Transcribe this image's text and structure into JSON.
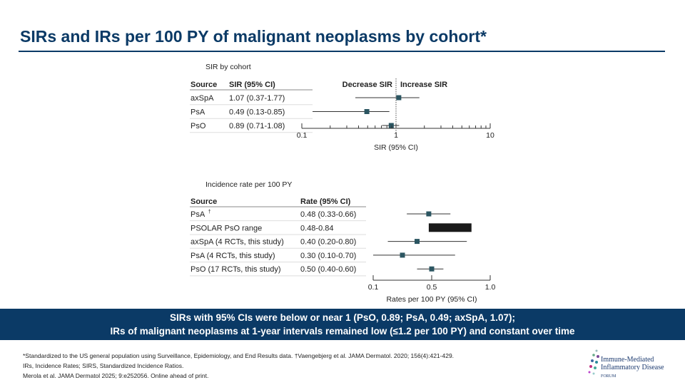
{
  "title": "SIRs and IRs per 100 PY of malignant neoplasms by cohort*",
  "chart_data": [
    {
      "type": "forest",
      "title": "SIR by cohort",
      "xlabel": "SIR (95% CI)",
      "scale": "log",
      "xlim": [
        0.1,
        10
      ],
      "ticks": [
        "0.1",
        "1",
        "10"
      ],
      "headers": [
        "Source",
        "SIR (95% CI)"
      ],
      "reference_line": 1,
      "left_label": "Decrease SIR",
      "right_label": "Increase SIR",
      "rows": [
        {
          "source": "axSpA",
          "text": "1.07 (0.37-1.77)",
          "est": 1.07,
          "lo": 0.37,
          "hi": 1.77
        },
        {
          "source": "PsA",
          "text": "0.49 (0.13-0.85)",
          "est": 0.49,
          "lo": 0.13,
          "hi": 0.85
        },
        {
          "source": "PsO",
          "text": "0.89 (0.71-1.08)",
          "est": 0.89,
          "lo": 0.71,
          "hi": 1.08
        }
      ]
    },
    {
      "type": "forest",
      "title": "Incidence rate per 100 PY",
      "xlabel": "Rates per 100 PY (95% CI)",
      "xlim": [
        0.1,
        1.0
      ],
      "ticks": [
        "0.1",
        "0.5",
        "1.0"
      ],
      "headers": [
        "Source",
        "Rate (95% CI)"
      ],
      "rows": [
        {
          "source": "PsA",
          "sup": "†",
          "text": "0.48 (0.33-0.66)",
          "est": 0.48,
          "lo": 0.33,
          "hi": 0.66
        },
        {
          "source": "PSOLAR PsO range",
          "text": "0.48-0.84",
          "lo": 0.48,
          "hi": 0.84,
          "range": true
        },
        {
          "source": "axSpA (4 RCTs, this study)",
          "text": "0.40 (0.20-0.80)",
          "est": 0.4,
          "lo": 0.2,
          "hi": 0.8
        },
        {
          "source": "PsA (4 RCTs, this study)",
          "text": "0.30 (0.10-0.70)",
          "est": 0.3,
          "lo": 0.1,
          "hi": 0.7
        },
        {
          "source": "PsO (17 RCTs, this study)",
          "text": "0.50 (0.40-0.60)",
          "est": 0.5,
          "lo": 0.4,
          "hi": 0.6
        }
      ]
    }
  ],
  "colors": {
    "brand": "#0b3a66",
    "marker": "#2b5561",
    "range_bar": "#1a1a1a"
  },
  "banner": [
    "SIRs with 95% CIs were below or near 1 (PsO, 0.89; PsA, 0.49; axSpA, 1.07);",
    "IRs of malignant neoplasms at 1-year intervals remained low (≤1.2 per 100 PY) and constant over time"
  ],
  "footnotes": [
    "*Standardized to the US general population using Surveillance, Epidemiology, and End Results data. †Vaengebjerg et al. JAMA Dermatol. 2020; 156(4):421-429.",
    "IRs, Incidence Rates; SIRS, Standardized Incidence Ratios.",
    "Merola et al. JAMA Dermatol 2025; 9:e252056. Online ahead of print."
  ],
  "logo": {
    "lines": [
      "Immune-Mediated",
      "Inflammatory Disease",
      "FORUM"
    ]
  }
}
